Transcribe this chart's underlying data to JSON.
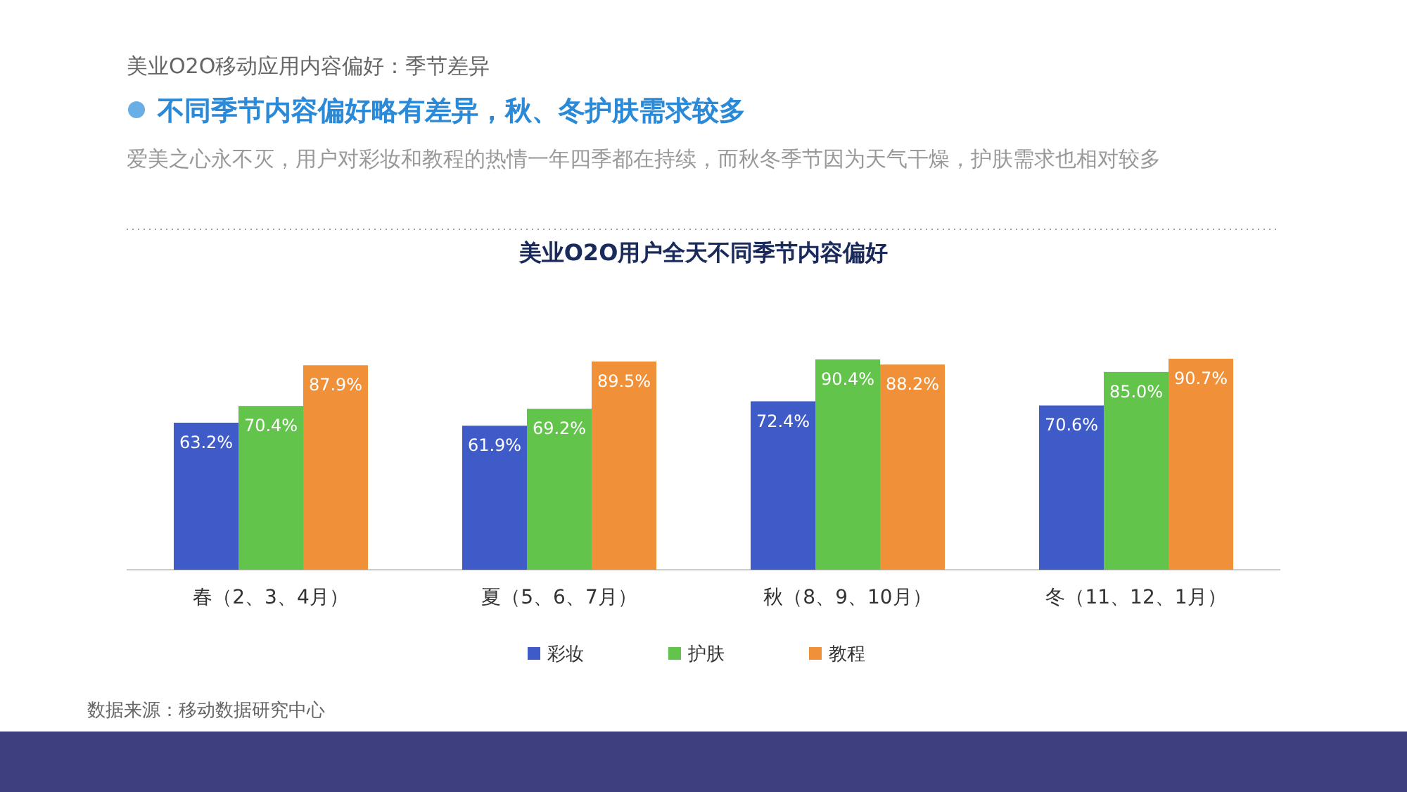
{
  "chart_data": {
    "type": "bar",
    "title": "美业O2O用户全天不同季节内容偏好",
    "annotations": [
      "美业O2O移动应用内容偏好：季节差异",
      "不同季节内容偏好略有差异，秋、冬护肤需求较多",
      "爱美之心永不灭，用户对彩妆和教程的热情一年四季都在持续，而秋冬季节因为天气干燥，护肤需求也相对较多",
      "数据来源：移动数据研究中心"
    ],
    "categories": [
      "春（2、3、4月）",
      "夏（5、6、7月）",
      "秋（8、9、10月）",
      "冬（11、12、1月）"
    ],
    "series": [
      {
        "name": "彩妆",
        "color": "#3f5bc8",
        "values": [
          63.2,
          61.9,
          72.4,
          70.6
        ],
        "value_labels": [
          "63.2%",
          "61.9%",
          "72.4%",
          "70.6%"
        ]
      },
      {
        "name": "护肤",
        "color": "#62c44a",
        "values": [
          70.4,
          69.2,
          90.4,
          85.0
        ],
        "value_labels": [
          "70.4%",
          "69.2%",
          "90.4%",
          "85.0%"
        ]
      },
      {
        "name": "教程",
        "color": "#f0913a",
        "values": [
          87.9,
          89.5,
          88.2,
          90.7
        ],
        "value_labels": [
          "87.9%",
          "89.5%",
          "88.2%",
          "90.7%"
        ]
      }
    ],
    "legend": "bottom"
  }
}
